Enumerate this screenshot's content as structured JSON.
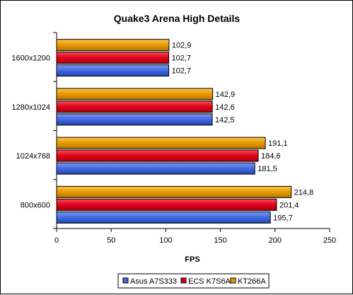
{
  "chart_data": {
    "type": "bar",
    "orientation": "horizontal",
    "title": "Quake3 Arena High Details",
    "xlabel": "FPS",
    "ylabel": "",
    "xlim": [
      0,
      250
    ],
    "x_ticks": [
      0,
      50,
      100,
      150,
      200,
      250
    ],
    "grid": false,
    "legend_position": "bottom",
    "categories": [
      "1600x1200",
      "1280x1024",
      "1024x768",
      "800x600"
    ],
    "series": [
      {
        "name": "Asus A7S333",
        "color": "#4169E1",
        "values": [
          102.7,
          142.5,
          181.5,
          195.7
        ],
        "labels": [
          "102,7",
          "142,5",
          "181,5",
          "195,7"
        ]
      },
      {
        "name": "ECS K7S6A",
        "color": "#E0001B",
        "values": [
          102.7,
          142.6,
          184.6,
          201.4
        ],
        "labels": [
          "102,7",
          "142,6",
          "184,6",
          "201,4"
        ]
      },
      {
        "name": "KT266A",
        "color": "#E69A00",
        "values": [
          102.9,
          142.9,
          191.1,
          214.8
        ],
        "labels": [
          "102,9",
          "142,9",
          "191,1",
          "214,8"
        ]
      }
    ]
  }
}
